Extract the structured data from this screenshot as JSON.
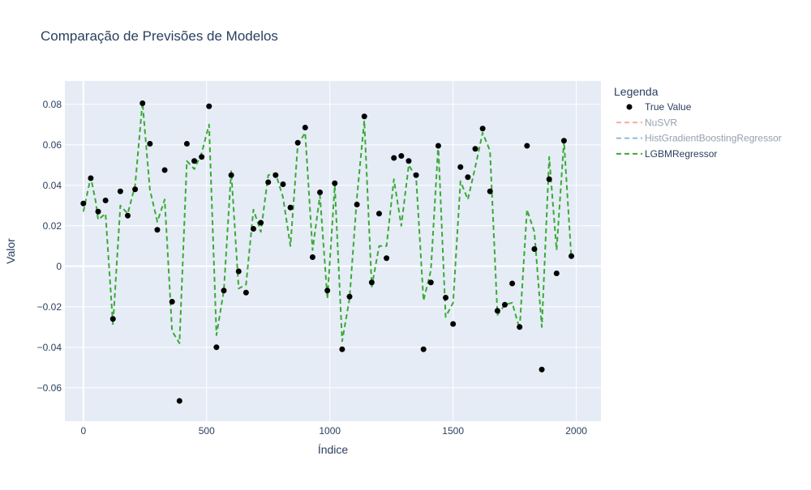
{
  "chart_data": {
    "type": "scatter",
    "title": "Comparação de Previsões de Modelos",
    "xlabel": "Índice",
    "ylabel": "Valor",
    "xlim": [
      -75,
      2100
    ],
    "ylim": [
      -0.0765,
      0.0915
    ],
    "x_ticks": [
      0,
      500,
      1000,
      1500,
      2000
    ],
    "x_tick_labels": [
      "0",
      "500",
      "1000",
      "1500",
      "2000"
    ],
    "y_ticks": [
      -0.06,
      -0.04,
      -0.02,
      0,
      0.02,
      0.04,
      0.06,
      0.08
    ],
    "y_tick_labels": [
      "−0.06",
      "−0.04",
      "−0.02",
      "0",
      "0.02",
      "0.04",
      "0.06",
      "0.08"
    ],
    "grid": true,
    "legend": {
      "title": "Legenda",
      "placement": "top-right outside"
    },
    "series": [
      {
        "name": "True Value",
        "mode": "markers",
        "color": "#000000",
        "visible": true,
        "x": [
          0,
          30,
          60,
          90,
          120,
          150,
          180,
          210,
          240,
          270,
          300,
          330,
          360,
          390,
          420,
          450,
          480,
          510,
          540,
          570,
          600,
          630,
          660,
          690,
          720,
          750,
          780,
          810,
          840,
          870,
          900,
          930,
          960,
          990,
          1020,
          1050,
          1080,
          1110,
          1140,
          1170,
          1200,
          1230,
          1260,
          1290,
          1320,
          1350,
          1380,
          1410,
          1440,
          1470,
          1500,
          1530,
          1560,
          1590,
          1620,
          1650,
          1680,
          1710,
          1740,
          1770,
          1800,
          1830,
          1860,
          1890,
          1920,
          1950,
          1980
        ],
        "y": [
          0.031,
          0.0435,
          0.027,
          0.0325,
          -0.026,
          0.037,
          0.025,
          0.038,
          0.0805,
          0.0605,
          0.018,
          0.0475,
          -0.0175,
          -0.0665,
          0.0605,
          0.052,
          0.054,
          0.079,
          -0.04,
          -0.012,
          0.045,
          -0.0025,
          -0.013,
          0.0185,
          0.0215,
          0.0415,
          0.045,
          0.0405,
          0.029,
          0.061,
          0.0685,
          0.0045,
          0.0365,
          -0.012,
          0.041,
          -0.041,
          -0.015,
          0.0305,
          0.074,
          -0.008,
          0.026,
          0.004,
          0.0535,
          0.0545,
          0.052,
          0.045,
          -0.041,
          -0.008,
          0.0595,
          -0.0155,
          -0.0285,
          0.049,
          0.044,
          0.058,
          0.068,
          0.037,
          -0.022,
          -0.019,
          -0.0085,
          -0.03,
          0.0595,
          0.0085,
          -0.051,
          0.043,
          -0.0035,
          0.062,
          0.005
        ]
      },
      {
        "name": "NuSVR",
        "mode": "lines",
        "dash": "dash",
        "color": "#ef553b",
        "visible": "legendonly",
        "x": [],
        "y": []
      },
      {
        "name": "HistGradientBoostingRegressor",
        "mode": "lines",
        "dash": "dash",
        "color": "#1f77b4",
        "visible": "legendonly",
        "x": [],
        "y": []
      },
      {
        "name": "LGBMRegressor",
        "mode": "lines",
        "dash": "dash",
        "color": "#3aaa35",
        "visible": true,
        "x": [
          0,
          30,
          50,
          60,
          90,
          120,
          150,
          180,
          210,
          240,
          270,
          300,
          330,
          360,
          390,
          420,
          450,
          480,
          510,
          540,
          570,
          600,
          630,
          660,
          690,
          720,
          750,
          780,
          810,
          840,
          870,
          900,
          930,
          960,
          990,
          1020,
          1050,
          1080,
          1110,
          1140,
          1170,
          1200,
          1230,
          1260,
          1290,
          1320,
          1350,
          1380,
          1410,
          1440,
          1470,
          1500,
          1530,
          1560,
          1590,
          1620,
          1650,
          1680,
          1710,
          1740,
          1770,
          1800,
          1830,
          1860,
          1890,
          1920,
          1950,
          1980
        ],
        "y": [
          0.027,
          0.044,
          0.032,
          0.023,
          0.026,
          -0.029,
          0.03,
          0.026,
          0.04,
          0.081,
          0.038,
          0.022,
          0.033,
          -0.032,
          -0.038,
          0.052,
          0.048,
          0.056,
          0.07,
          -0.034,
          -0.012,
          0.047,
          -0.011,
          -0.009,
          0.028,
          0.017,
          0.045,
          0.046,
          0.034,
          0.01,
          0.06,
          0.066,
          0.008,
          0.035,
          -0.016,
          0.04,
          -0.037,
          -0.016,
          0.034,
          0.072,
          -0.01,
          0.01,
          0.01,
          0.043,
          0.02,
          0.05,
          0.044,
          -0.017,
          -0.002,
          0.06,
          -0.025,
          -0.018,
          0.042,
          0.033,
          0.049,
          0.066,
          0.057,
          -0.024,
          -0.019,
          -0.018,
          -0.031,
          0.028,
          0.017,
          -0.03,
          0.054,
          0.008,
          0.062,
          0.004
        ]
      }
    ]
  }
}
